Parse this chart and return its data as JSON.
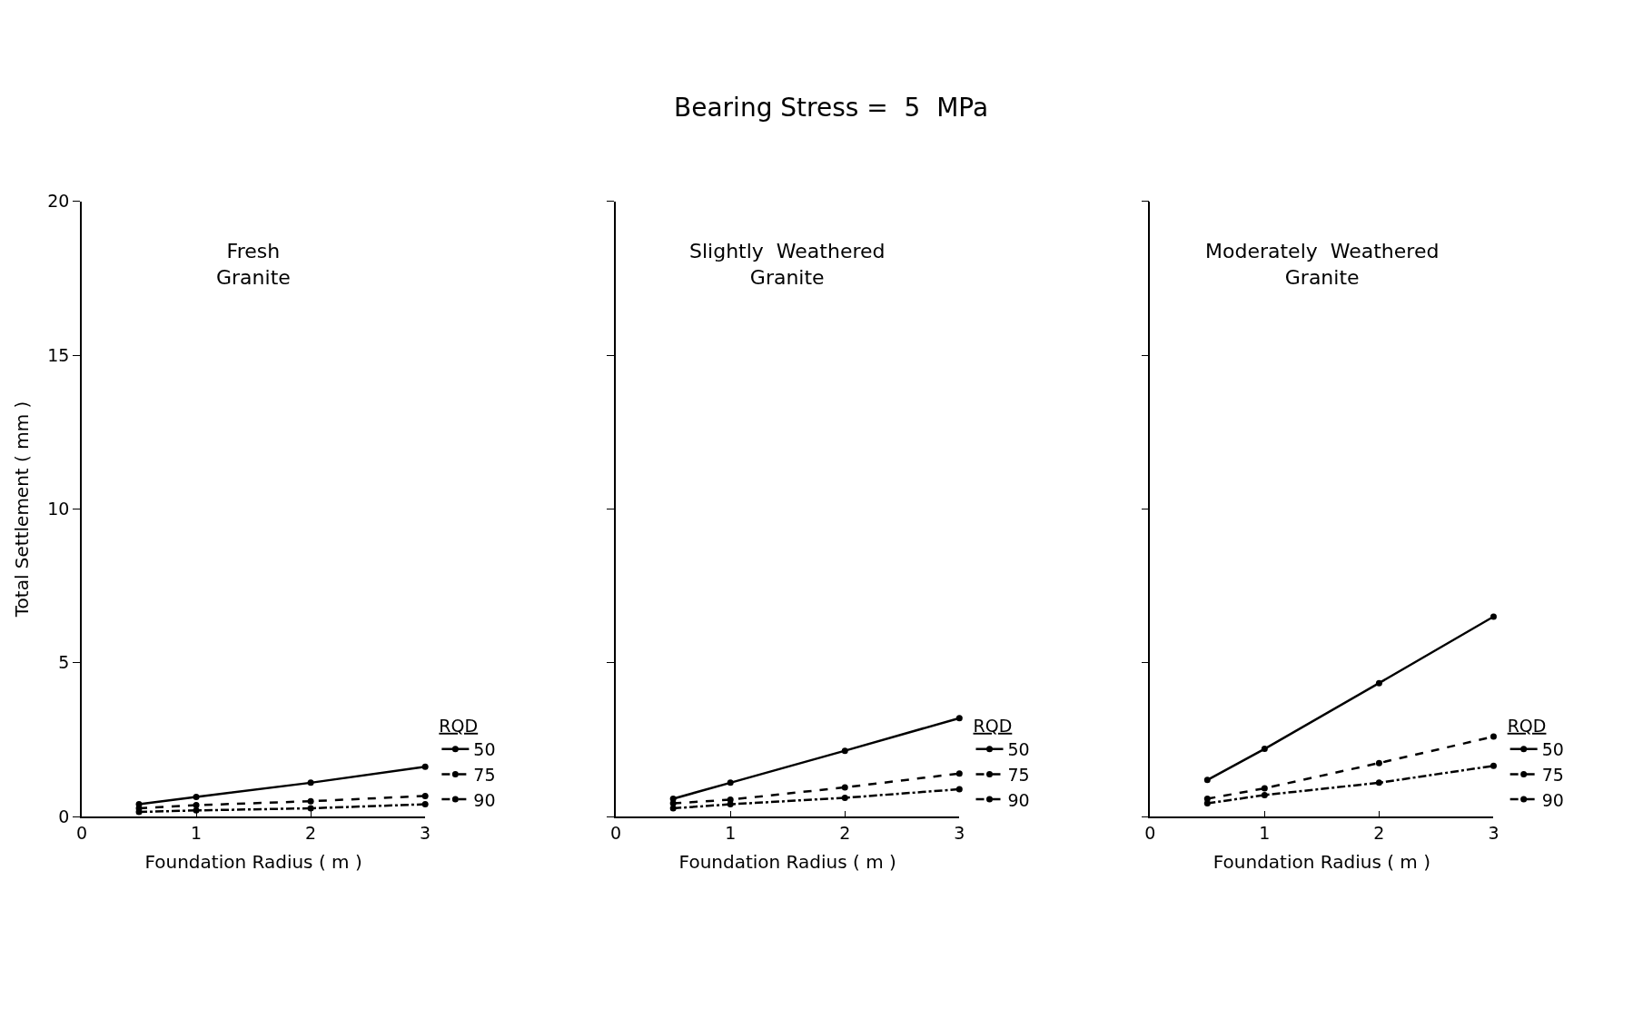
{
  "chart_data": [
    {
      "type": "line",
      "title": "Fresh\nGranite",
      "annotations": [
        "Bearing Stress =  5  MPa"
      ],
      "xlabel": "Foundation Radius ( m )",
      "ylabel": "Total Settlement ( mm )",
      "legend_title": "RQD",
      "x": [
        0.5,
        1,
        2,
        3
      ],
      "xlim": [
        0,
        3
      ],
      "xticks": [
        0,
        1,
        2,
        3
      ],
      "ylim": [
        0,
        20
      ],
      "yticks": [
        0,
        5,
        10,
        15,
        20
      ],
      "legend": "right",
      "marker": "circle",
      "series": [
        {
          "name": "50",
          "color": "#000000",
          "line_style": "solid",
          "values": [
            0.4,
            0.64,
            1.1,
            1.62
          ]
        },
        {
          "name": "75",
          "color": "#000000",
          "line_style": "dashed",
          "values": [
            0.27,
            0.37,
            0.5,
            0.67
          ]
        },
        {
          "name": "90",
          "color": "#000000",
          "line_style": "dashdot",
          "values": [
            0.15,
            0.2,
            0.27,
            0.4
          ]
        }
      ]
    },
    {
      "type": "line",
      "title": "Slightly  Weathered\nGranite",
      "xlabel": "Foundation Radius ( m )",
      "legend_title": "RQD",
      "x": [
        0.5,
        1,
        2,
        3
      ],
      "xlim": [
        0,
        3
      ],
      "xticks": [
        0,
        1,
        2,
        3
      ],
      "ylim": [
        0,
        20
      ],
      "yticks": [
        0,
        5,
        10,
        15,
        20
      ],
      "tick_labels": "x",
      "legend": "right",
      "marker": "circle",
      "series": [
        {
          "name": "50",
          "color": "#000000",
          "line_style": "solid",
          "values": [
            0.58,
            1.1,
            2.14,
            3.2
          ]
        },
        {
          "name": "75",
          "color": "#000000",
          "line_style": "dashed",
          "values": [
            0.43,
            0.55,
            0.95,
            1.4
          ]
        },
        {
          "name": "90",
          "color": "#000000",
          "line_style": "dashdot",
          "values": [
            0.27,
            0.4,
            0.61,
            0.89
          ]
        }
      ]
    },
    {
      "type": "line",
      "title": "Moderately  Weathered\nGranite",
      "xlabel": "Foundation Radius ( m )",
      "legend_title": "RQD",
      "x": [
        0.5,
        1,
        2,
        3
      ],
      "xlim": [
        0,
        3
      ],
      "xticks": [
        0,
        1,
        2,
        3
      ],
      "ylim": [
        0,
        20
      ],
      "yticks": [
        0,
        5,
        10,
        15,
        20
      ],
      "tick_labels": "x",
      "legend": "right",
      "marker": "circle",
      "series": [
        {
          "name": "50",
          "color": "#000000",
          "line_style": "solid",
          "values": [
            1.19,
            2.2,
            4.34,
            6.5
          ]
        },
        {
          "name": "75",
          "color": "#000000",
          "line_style": "dashed",
          "values": [
            0.58,
            0.92,
            1.74,
            2.6
          ]
        },
        {
          "name": "90",
          "color": "#000000",
          "line_style": "dashdot",
          "values": [
            0.43,
            0.7,
            1.1,
            1.65
          ]
        }
      ]
    }
  ]
}
